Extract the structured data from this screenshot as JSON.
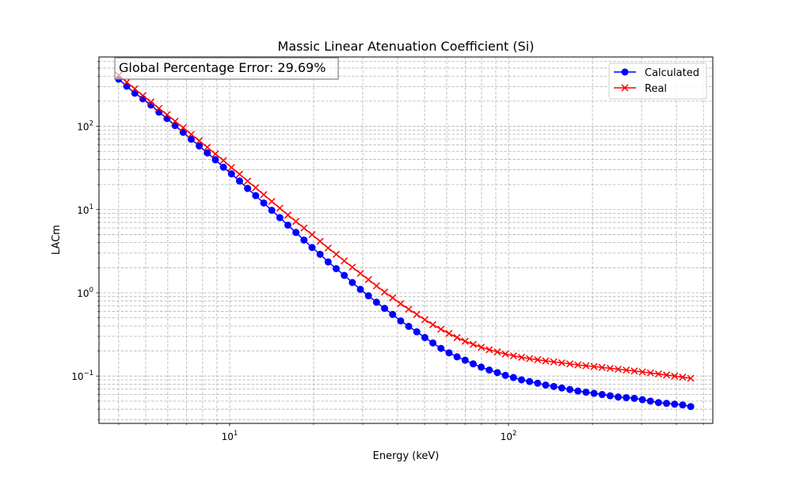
{
  "chart_data": {
    "type": "line",
    "title": "Massic Linear Atenuation Coefficient (Si)",
    "xlabel": "Energy (keV)",
    "ylabel": "LACm",
    "xscale": "log",
    "yscale": "log",
    "xlim": [
      3.4,
      540
    ],
    "ylim": [
      0.027,
      680
    ],
    "grid": true,
    "legend_position": "upper right",
    "x_major_ticks": [
      {
        "value": 10,
        "base": "10",
        "exp": "1"
      },
      {
        "value": 100,
        "base": "10",
        "exp": "2"
      }
    ],
    "y_major_ticks": [
      {
        "value": 0.1,
        "base": "10",
        "exp": "−1"
      },
      {
        "value": 1,
        "base": "10",
        "exp": "0"
      },
      {
        "value": 10,
        "base": "10",
        "exp": "1"
      },
      {
        "value": 100,
        "base": "10",
        "exp": "2"
      }
    ],
    "annotation": "Global Percentage Error: 29.69%",
    "series": [
      {
        "name": "Calculated",
        "color": "#0000ff",
        "marker": "circle",
        "energy_start": 4.0,
        "energy_end": 450,
        "values": [
          368,
          303,
          250,
          214,
          180,
          148,
          124,
          102,
          84.6,
          69.9,
          58.0,
          47.9,
          39.6,
          32.3,
          26.8,
          22.0,
          17.9,
          14.7,
          12.0,
          9.8,
          8.0,
          6.5,
          5.3,
          4.3,
          3.5,
          2.9,
          2.35,
          1.95,
          1.62,
          1.33,
          1.1,
          0.92,
          0.77,
          0.65,
          0.55,
          0.46,
          0.395,
          0.34,
          0.29,
          0.25,
          0.215,
          0.19,
          0.17,
          0.155,
          0.14,
          0.128,
          0.118,
          0.11,
          0.102,
          0.096,
          0.09,
          0.086,
          0.082,
          0.078,
          0.075,
          0.072,
          0.069,
          0.066,
          0.064,
          0.062,
          0.06,
          0.058,
          0.056,
          0.055,
          0.054,
          0.052,
          0.05,
          0.048,
          0.047,
          0.046,
          0.045,
          0.043
        ]
      },
      {
        "name": "Real",
        "color": "#ff0000",
        "marker": "x",
        "energy_start": 4.0,
        "energy_end": 450,
        "values": [
          410,
          339,
          282,
          234,
          196,
          164,
          138,
          115,
          96.2,
          80.0,
          67.0,
          55.9,
          46.5,
          38.8,
          32.0,
          26.6,
          22.0,
          18.3,
          15.1,
          12.5,
          10.4,
          8.6,
          7.2,
          6.0,
          5.0,
          4.15,
          3.45,
          2.9,
          2.42,
          2.03,
          1.71,
          1.44,
          1.21,
          1.02,
          0.87,
          0.74,
          0.635,
          0.55,
          0.475,
          0.415,
          0.365,
          0.325,
          0.29,
          0.262,
          0.24,
          0.222,
          0.207,
          0.195,
          0.184,
          0.175,
          0.168,
          0.162,
          0.157,
          0.152,
          0.148,
          0.144,
          0.14,
          0.136,
          0.133,
          0.13,
          0.127,
          0.124,
          0.121,
          0.118,
          0.115,
          0.112,
          0.109,
          0.106,
          0.103,
          0.1,
          0.097,
          0.094
        ]
      }
    ]
  }
}
